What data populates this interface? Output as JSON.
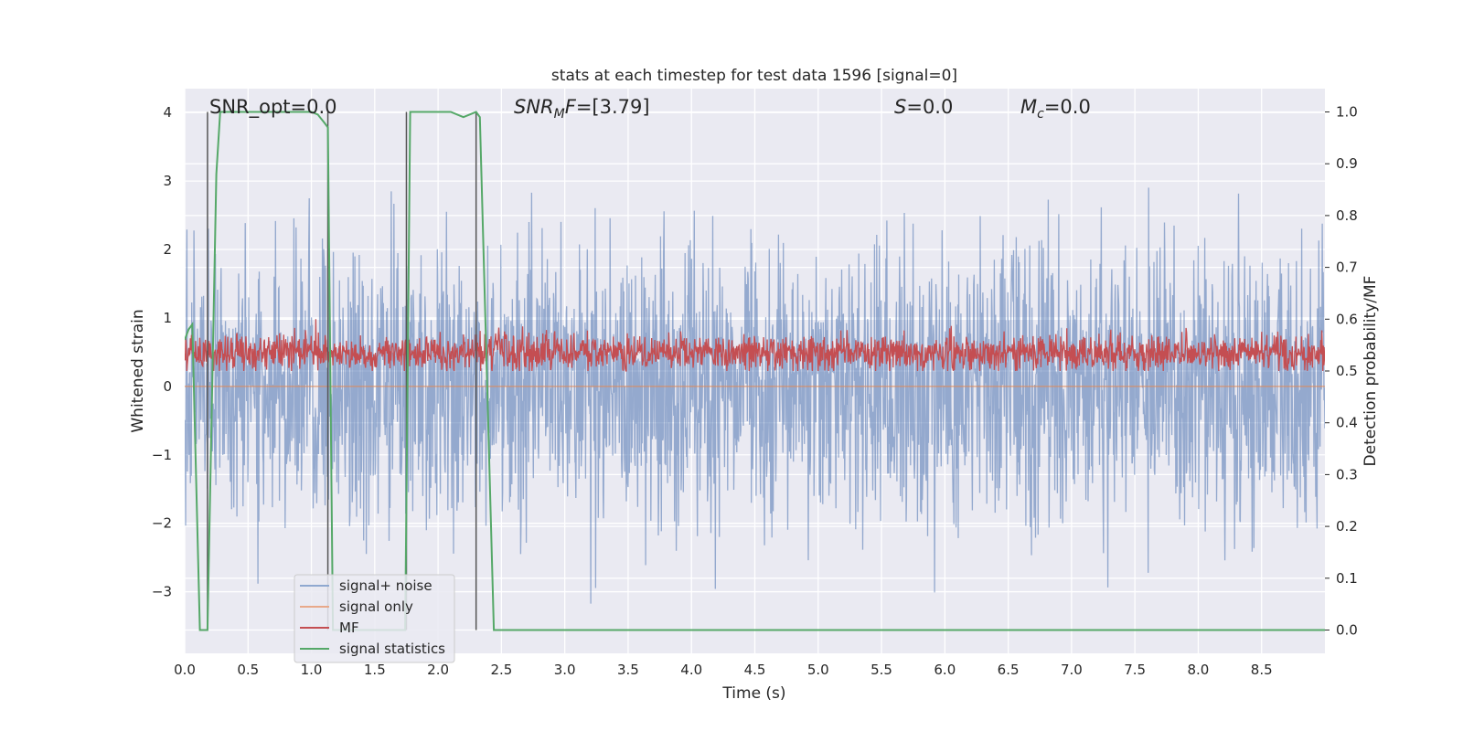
{
  "chart_data": {
    "type": "line",
    "title": "stats at each timestep for test data 1596 [signal=0]",
    "xlabel": "Time (s)",
    "ylabel": "Whitened strain",
    "ylabel_right": "Detection probability/MF",
    "xlim": [
      0,
      9.0
    ],
    "ylim": [
      -3.9,
      4.35
    ],
    "ylim_right": [
      -0.045,
      1.045
    ],
    "xticks": [
      "0.0",
      "0.5",
      "1.0",
      "1.5",
      "2.0",
      "2.5",
      "3.0",
      "3.5",
      "4.0",
      "4.5",
      "5.0",
      "5.5",
      "6.0",
      "6.5",
      "7.0",
      "7.5",
      "8.0",
      "8.5"
    ],
    "yticks": [
      "4",
      "3",
      "2",
      "1",
      "0",
      "−1",
      "−2",
      "−3"
    ],
    "yticks_right": [
      "1.0",
      "0.9",
      "0.8",
      "0.7",
      "0.6",
      "0.5",
      "0.4",
      "0.3",
      "0.2",
      "0.1",
      "0.0"
    ],
    "grid": true,
    "legend_position": "lower-left",
    "annotations": {
      "snr_opt": "SNR_opt=0.0",
      "snr_mf": "SNR_MF=[3.79]",
      "snr_mf_main": "SNR",
      "snr_mf_sub": "M",
      "snr_mf_rest": "F=[3.79]",
      "s_sym": "S",
      "s_val": "=0.0",
      "mc_sym": "M",
      "mc_sub": "c",
      "mc_val": "=0.0"
    },
    "series": [
      {
        "name": "signal+ noise",
        "color": "#4c72b0",
        "axis": "left",
        "description_range": [
          -3.6,
          4.0
        ],
        "noise_std": 1.0
      },
      {
        "name": "signal only",
        "color": "#dd8452",
        "axis": "left",
        "constant": 0.0
      },
      {
        "name": "MF",
        "color": "#c44e52",
        "axis": "right",
        "baseline": 0.535,
        "range": [
          0.5,
          0.6
        ]
      },
      {
        "name": "signal statistics",
        "color": "#55a868",
        "axis": "right",
        "x": [
          0.0,
          0.03,
          0.06,
          0.12,
          0.18,
          0.25,
          0.28,
          0.4,
          0.6,
          0.8,
          0.95,
          1.0,
          1.05,
          1.1,
          1.13,
          1.17,
          1.2,
          1.74,
          1.78,
          1.8,
          1.85,
          2.0,
          2.1,
          2.2,
          2.25,
          2.3,
          2.33,
          2.44,
          2.48,
          9.0
        ],
        "y": [
          0.56,
          0.58,
          0.59,
          0.0,
          0.0,
          0.88,
          1.0,
          1.0,
          1.0,
          1.0,
          1.0,
          1.0,
          0.995,
          0.98,
          0.97,
          0.0,
          0.0,
          0.0,
          1.0,
          1.0,
          1.0,
          1.0,
          1.0,
          0.99,
          0.995,
          1.0,
          0.99,
          0.0,
          0.0,
          0.0
        ]
      }
    ],
    "vlines": [
      0.18,
      1.13,
      1.75,
      2.3
    ]
  }
}
